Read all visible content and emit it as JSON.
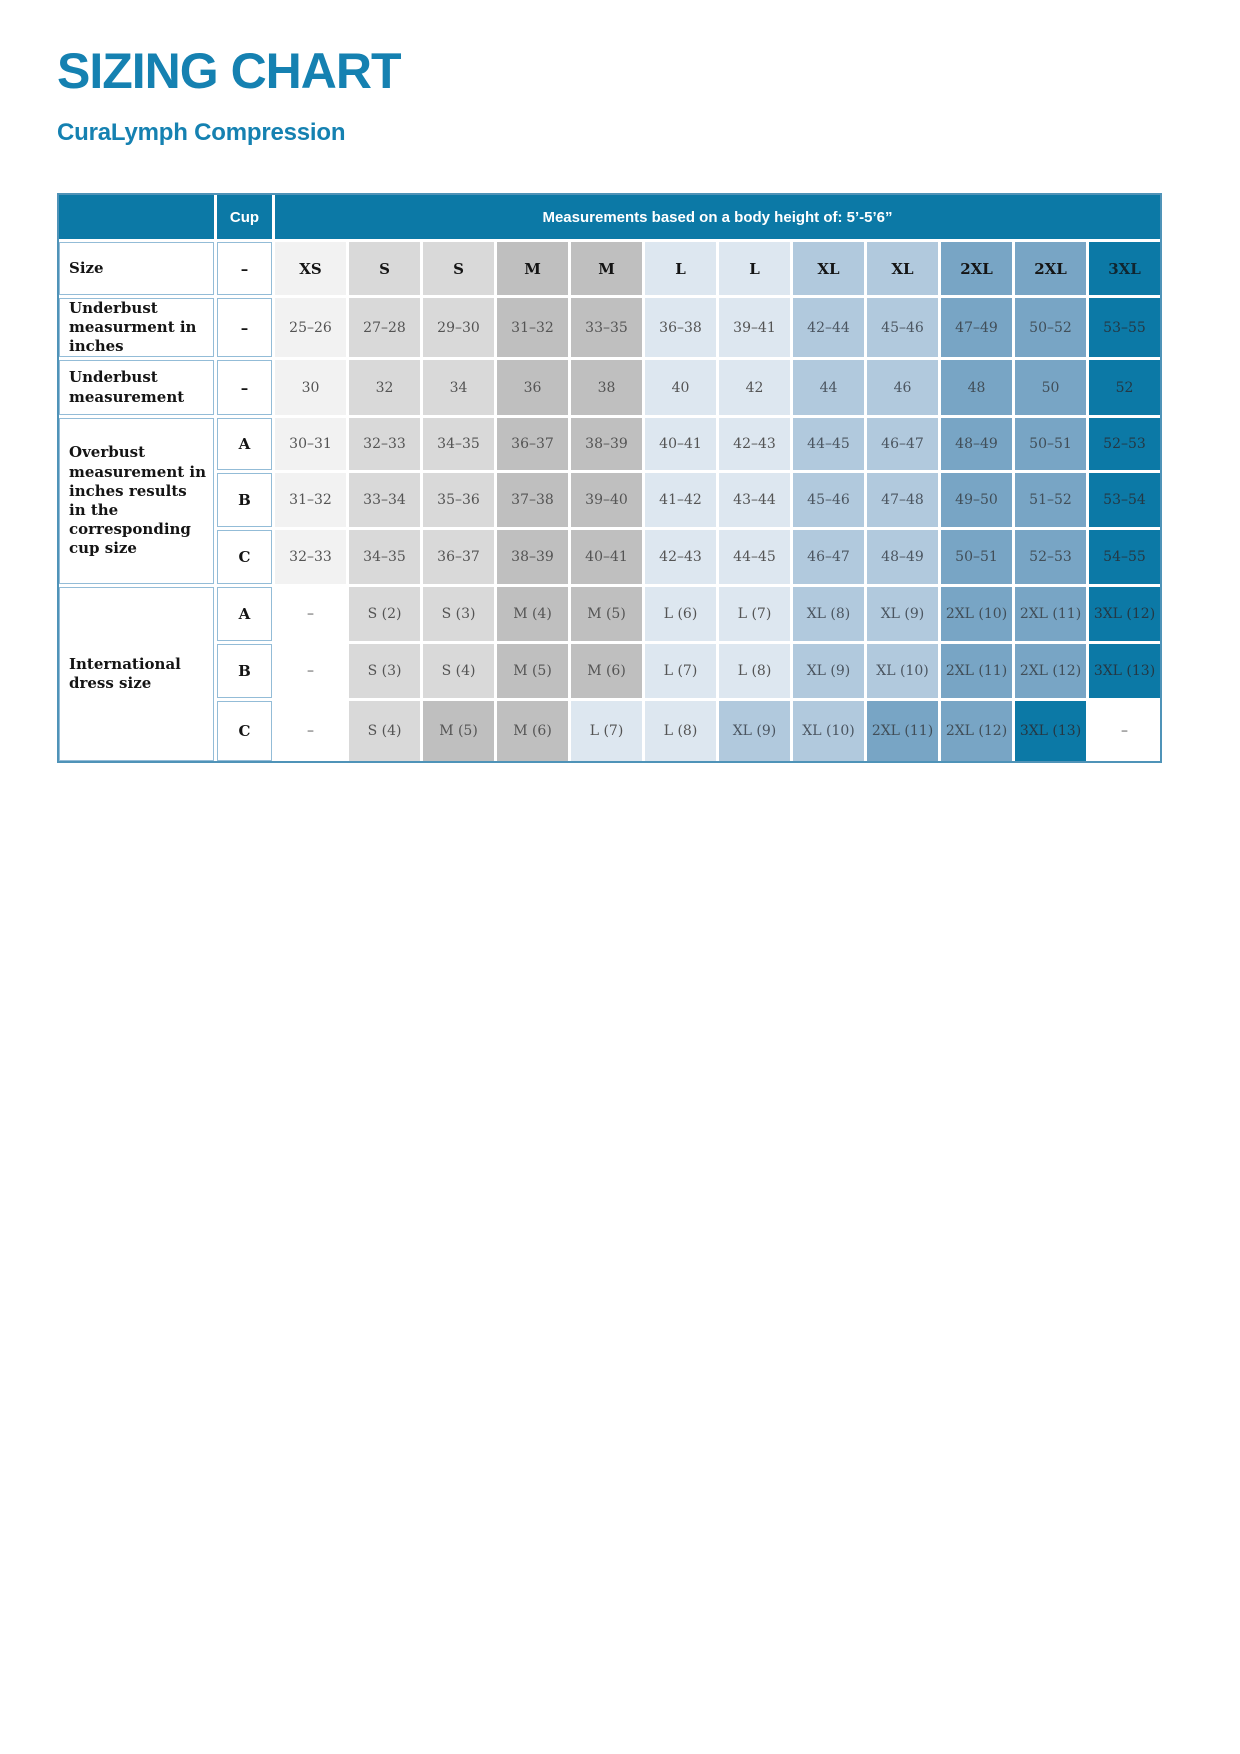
{
  "page": {
    "title": "SIZING CHART",
    "subtitle": "CuraLymph Compression"
  },
  "colors": {
    "accent_blue": "#1581b1",
    "band_teal": "#0c79a6",
    "col_xs": "#f2f2f2",
    "col_s": "#d9d9d9",
    "col_m": "#bfbfbf",
    "col_l": "#dde7f0",
    "col_xl": "#b1c9dd",
    "col_2xl": "#78a5c5",
    "col_3xl": "#0c79a6",
    "outer_border": "#4f93b8",
    "label_border": "#93bcd7"
  },
  "table": {
    "header": {
      "cup_label": "Cup",
      "measurements_label": "Measurements based on a body height of: 5’-5’6”"
    },
    "rows": [
      {
        "label": "Size",
        "label_span": 1,
        "cup": "–",
        "bold_values": true,
        "values": [
          "XS",
          "S",
          "S",
          "M",
          "M",
          "L",
          "L",
          "XL",
          "XL",
          "2XL",
          "2XL",
          "3XL"
        ],
        "colors": [
          "xs",
          "s",
          "s",
          "m",
          "m",
          "l",
          "l",
          "xl",
          "xl",
          "2xl",
          "2xl",
          "3xl"
        ]
      },
      {
        "label": "Underbust measurment in inches",
        "label_span": 1,
        "cup": "–",
        "bold_values": false,
        "values": [
          "25–26",
          "27–28",
          "29–30",
          "31–32",
          "33–35",
          "36–38",
          "39–41",
          "42–44",
          "45–46",
          "47–49",
          "50–52",
          "53–55"
        ],
        "colors": [
          "xs",
          "s",
          "s",
          "m",
          "m",
          "l",
          "l",
          "xl",
          "xl",
          "2xl",
          "2xl",
          "3xl"
        ]
      },
      {
        "label": "Underbust measurement",
        "label_span": 1,
        "cup": "–",
        "bold_values": false,
        "values": [
          "30",
          "32",
          "34",
          "36",
          "38",
          "40",
          "42",
          "44",
          "46",
          "48",
          "50",
          "52"
        ],
        "colors": [
          "xs",
          "s",
          "s",
          "m",
          "m",
          "l",
          "l",
          "xl",
          "xl",
          "2xl",
          "2xl",
          "3xl"
        ]
      },
      {
        "label": "Overbust measurement in inches results in the corresponding cup size",
        "label_span": 3,
        "cup": "A",
        "bold_values": false,
        "values": [
          "30–31",
          "32–33",
          "34–35",
          "36–37",
          "38–39",
          "40–41",
          "42–43",
          "44–45",
          "46–47",
          "48–49",
          "50–51",
          "52–53"
        ],
        "colors": [
          "xs",
          "s",
          "s",
          "m",
          "m",
          "l",
          "l",
          "xl",
          "xl",
          "2xl",
          "2xl",
          "3xl"
        ]
      },
      {
        "label": null,
        "cup": "B",
        "bold_values": false,
        "values": [
          "31–32",
          "33–34",
          "35–36",
          "37–38",
          "39–40",
          "41–42",
          "43–44",
          "45–46",
          "47–48",
          "49–50",
          "51–52",
          "53–54"
        ],
        "colors": [
          "xs",
          "s",
          "s",
          "m",
          "m",
          "l",
          "l",
          "xl",
          "xl",
          "2xl",
          "2xl",
          "3xl"
        ]
      },
      {
        "label": null,
        "cup": "C",
        "bold_values": false,
        "values": [
          "32–33",
          "34–35",
          "36–37",
          "38–39",
          "40–41",
          "42–43",
          "44–45",
          "46–47",
          "48–49",
          "50–51",
          "52–53",
          "54–55"
        ],
        "colors": [
          "xs",
          "s",
          "s",
          "m",
          "m",
          "l",
          "l",
          "xl",
          "xl",
          "2xl",
          "2xl",
          "3xl"
        ]
      },
      {
        "label": "International dress size",
        "label_span": 3,
        "cup": "A",
        "bold_values": false,
        "values": [
          "–",
          "S (2)",
          "S (3)",
          "M (4)",
          "M (5)",
          "L (6)",
          "L (7)",
          "XL (8)",
          "XL (9)",
          "2XL (10)",
          "2XL (11)",
          "3XL (12)"
        ],
        "colors": [
          "none",
          "s",
          "s",
          "m",
          "m",
          "l",
          "l",
          "xl",
          "xl",
          "2xl",
          "2xl",
          "3xl"
        ]
      },
      {
        "label": null,
        "cup": "B",
        "bold_values": false,
        "values": [
          "–",
          "S (3)",
          "S (4)",
          "M (5)",
          "M (6)",
          "L (7)",
          "L (8)",
          "XL (9)",
          "XL (10)",
          "2XL (11)",
          "2XL (12)",
          "3XL (13)"
        ],
        "colors": [
          "none",
          "s",
          "s",
          "m",
          "m",
          "l",
          "l",
          "xl",
          "xl",
          "2xl",
          "2xl",
          "3xl"
        ]
      },
      {
        "label": null,
        "cup": "C",
        "bold_values": false,
        "values": [
          "–",
          "S (4)",
          "M (5)",
          "M (6)",
          "L (7)",
          "L (8)",
          "XL (9)",
          "XL (10)",
          "2XL (11)",
          "2XL (12)",
          "3XL (13)",
          "–"
        ],
        "colors": [
          "none",
          "s",
          "m",
          "m",
          "l",
          "l",
          "xl",
          "xl",
          "2xl",
          "2xl",
          "3xl",
          "none"
        ]
      }
    ]
  }
}
